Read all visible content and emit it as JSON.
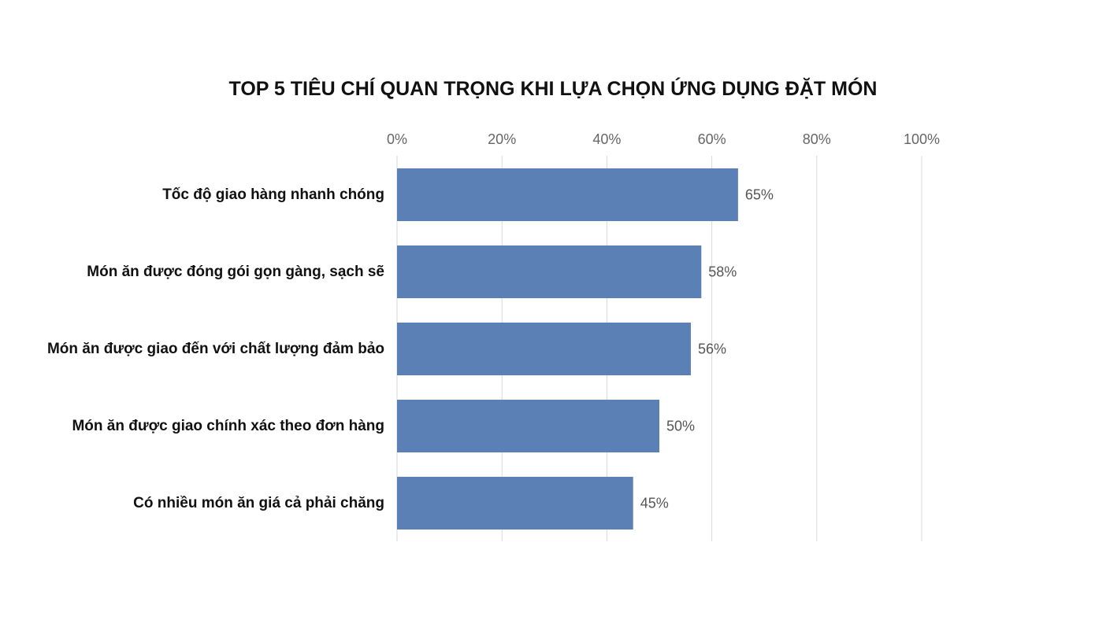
{
  "chart_data": {
    "type": "bar",
    "orientation": "horizontal",
    "title": "TOP 5 TIÊU CHÍ QUAN TRỌNG KHI LỰA CHỌN ỨNG DỤNG ĐẶT MÓN",
    "categories": [
      "Tốc độ giao hàng nhanh chóng",
      "Món ăn được đóng gói gọn gàng, sạch sẽ",
      "Món ăn được giao đến với chất lượng đảm bảo",
      "Món ăn được giao chính xác theo đơn hàng",
      "Có nhiều món ăn giá cả phải chăng"
    ],
    "values": [
      65,
      58,
      56,
      50,
      45
    ],
    "data_labels": [
      "65%",
      "58%",
      "56%",
      "50%",
      "45%"
    ],
    "xlim": [
      0,
      100
    ],
    "ticks": [
      0,
      20,
      40,
      60,
      80,
      100
    ],
    "tick_labels": [
      "0%",
      "20%",
      "40%",
      "60%",
      "80%",
      "100%"
    ],
    "axis_position": "top",
    "grid": true,
    "legend": "none",
    "colors": {
      "bar": "#5b80b5",
      "grid": "#d9d9d9"
    }
  }
}
